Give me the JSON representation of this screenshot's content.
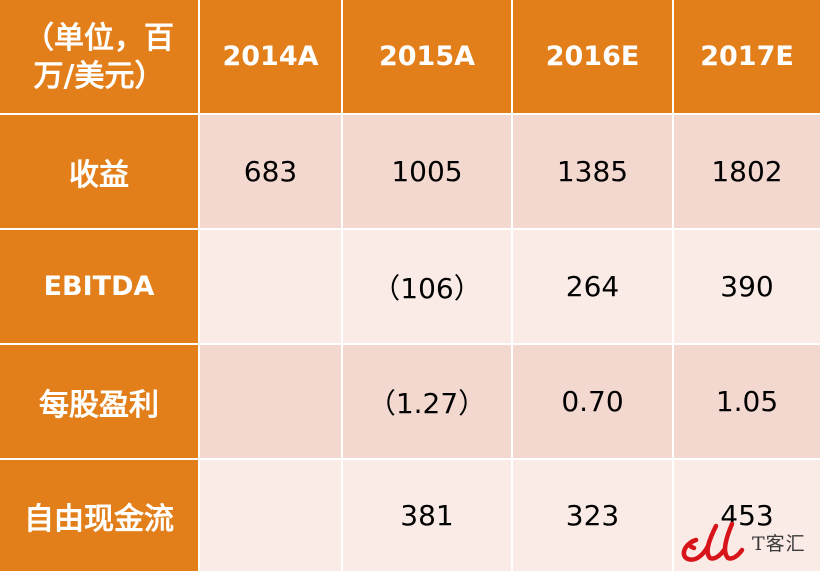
{
  "table": {
    "corner_label": "（单位，百万/美元）",
    "columns": [
      "2014A",
      "2015A",
      "2016E",
      "2017E"
    ],
    "rows": [
      {
        "label": "收益",
        "values": [
          "683",
          "1005",
          "1385",
          "1802"
        ]
      },
      {
        "label": "EBITDA",
        "values": [
          "",
          "（106）",
          "264",
          "390"
        ]
      },
      {
        "label": "每股盈利",
        "values": [
          "",
          "（1.27）",
          "0.70",
          "1.05"
        ]
      },
      {
        "label": "自由现金流",
        "values": [
          "",
          "381",
          "323",
          "453"
        ]
      }
    ]
  },
  "watermark": {
    "text": "T客汇",
    "logo_color": "#d8141b"
  },
  "colors": {
    "header_orange": "#e37f1a",
    "row_light": "#f3d8cf",
    "row_lighter": "#faebe6"
  }
}
